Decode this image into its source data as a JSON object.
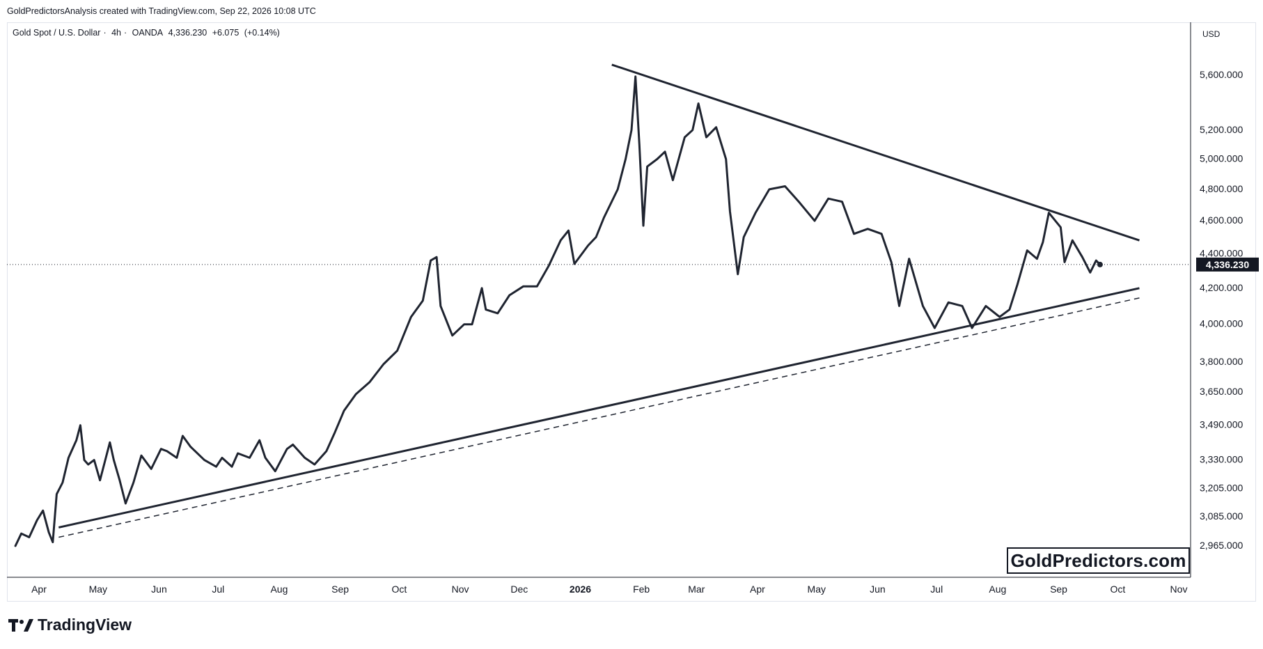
{
  "header": {
    "attribution": "GoldPredictorsAnalysis created with TradingView.com, Sep 22, 2026 10:08 UTC"
  },
  "legend": {
    "symbol": "Gold Spot / U.S. Dollar",
    "interval": "4h",
    "source": "OANDA",
    "last": "4,336.230",
    "change": "+6.075",
    "change_pct": "(+0.14%)"
  },
  "price_axis": {
    "currency": "USD",
    "current_price_label": "4,336.230"
  },
  "watermark": "GoldPredictors.com",
  "footer": {
    "brand": "TradingView"
  },
  "colors": {
    "line": "#1f2430",
    "trendline": "#1f2430",
    "grid": "#f0f3fa",
    "price_tag_bg": "#131722",
    "price_tag_text": "#ffffff"
  },
  "chart_data": {
    "type": "line",
    "title": "",
    "xlabel": "",
    "ylabel": "",
    "scale": "log",
    "ylim": [
      2860,
      5850
    ],
    "grid": false,
    "y_ticks": [
      "5,600.000",
      "5,200.000",
      "5,000.000",
      "4,800.000",
      "4,600.000",
      "4,400.000",
      "4,200.000",
      "4,000.000",
      "3,800.000",
      "3,650.000",
      "3,490.000",
      "3,330.000",
      "3,205.000",
      "3,085.000",
      "2,965.000"
    ],
    "x_ticks": [
      {
        "label": "Apr",
        "date": "2025-04-01",
        "bold": false
      },
      {
        "label": "May",
        "date": "2025-05-01",
        "bold": false
      },
      {
        "label": "Jun",
        "date": "2025-06-01",
        "bold": false
      },
      {
        "label": "Jul",
        "date": "2025-07-01",
        "bold": false
      },
      {
        "label": "Aug",
        "date": "2025-08-01",
        "bold": false
      },
      {
        "label": "Sep",
        "date": "2025-09-01",
        "bold": false
      },
      {
        "label": "Oct",
        "date": "2025-10-01",
        "bold": false
      },
      {
        "label": "Nov",
        "date": "2025-11-01",
        "bold": false
      },
      {
        "label": "Dec",
        "date": "2025-12-01",
        "bold": false
      },
      {
        "label": "2026",
        "date": "2026-01-01",
        "bold": true
      },
      {
        "label": "Feb",
        "date": "2026-02-01",
        "bold": false
      },
      {
        "label": "Mar",
        "date": "2026-03-01",
        "bold": false
      },
      {
        "label": "Apr",
        "date": "2026-04-01",
        "bold": false
      },
      {
        "label": "May",
        "date": "2026-05-01",
        "bold": false
      },
      {
        "label": "Jun",
        "date": "2026-06-01",
        "bold": false
      },
      {
        "label": "Jul",
        "date": "2026-07-01",
        "bold": false
      },
      {
        "label": "Aug",
        "date": "2026-08-01",
        "bold": false
      },
      {
        "label": "Sep",
        "date": "2026-09-01",
        "bold": false
      },
      {
        "label": "Oct",
        "date": "2026-10-01",
        "bold": false
      },
      {
        "label": "Nov",
        "date": "2026-11-01",
        "bold": false
      }
    ],
    "series": [
      {
        "values": [
          {
            "x": "2025-03-20",
            "y": 2965
          },
          {
            "x": "2025-03-23",
            "y": 3015
          },
          {
            "x": "2025-03-27",
            "y": 3000
          },
          {
            "x": "2025-03-31",
            "y": 3070
          },
          {
            "x": "2025-04-03",
            "y": 3110
          },
          {
            "x": "2025-04-06",
            "y": 3020
          },
          {
            "x": "2025-04-08",
            "y": 2980
          },
          {
            "x": "2025-04-10",
            "y": 3180
          },
          {
            "x": "2025-04-13",
            "y": 3230
          },
          {
            "x": "2025-04-16",
            "y": 3340
          },
          {
            "x": "2025-04-20",
            "y": 3420
          },
          {
            "x": "2025-04-22",
            "y": 3490
          },
          {
            "x": "2025-04-24",
            "y": 3330
          },
          {
            "x": "2025-04-26",
            "y": 3310
          },
          {
            "x": "2025-04-29",
            "y": 3330
          },
          {
            "x": "2025-05-02",
            "y": 3240
          },
          {
            "x": "2025-05-07",
            "y": 3410
          },
          {
            "x": "2025-05-09",
            "y": 3330
          },
          {
            "x": "2025-05-12",
            "y": 3240
          },
          {
            "x": "2025-05-15",
            "y": 3140
          },
          {
            "x": "2025-05-19",
            "y": 3230
          },
          {
            "x": "2025-05-23",
            "y": 3350
          },
          {
            "x": "2025-05-28",
            "y": 3290
          },
          {
            "x": "2025-06-02",
            "y": 3380
          },
          {
            "x": "2025-06-05",
            "y": 3370
          },
          {
            "x": "2025-06-10",
            "y": 3340
          },
          {
            "x": "2025-06-13",
            "y": 3440
          },
          {
            "x": "2025-06-17",
            "y": 3390
          },
          {
            "x": "2025-06-24",
            "y": 3330
          },
          {
            "x": "2025-06-30",
            "y": 3300
          },
          {
            "x": "2025-07-03",
            "y": 3340
          },
          {
            "x": "2025-07-08",
            "y": 3300
          },
          {
            "x": "2025-07-11",
            "y": 3360
          },
          {
            "x": "2025-07-17",
            "y": 3340
          },
          {
            "x": "2025-07-22",
            "y": 3420
          },
          {
            "x": "2025-07-25",
            "y": 3340
          },
          {
            "x": "2025-07-30",
            "y": 3280
          },
          {
            "x": "2025-08-05",
            "y": 3380
          },
          {
            "x": "2025-08-08",
            "y": 3400
          },
          {
            "x": "2025-08-14",
            "y": 3340
          },
          {
            "x": "2025-08-19",
            "y": 3310
          },
          {
            "x": "2025-08-25",
            "y": 3370
          },
          {
            "x": "2025-08-29",
            "y": 3450
          },
          {
            "x": "2025-09-03",
            "y": 3560
          },
          {
            "x": "2025-09-09",
            "y": 3640
          },
          {
            "x": "2025-09-16",
            "y": 3700
          },
          {
            "x": "2025-09-23",
            "y": 3790
          },
          {
            "x": "2025-09-30",
            "y": 3860
          },
          {
            "x": "2025-10-07",
            "y": 4040
          },
          {
            "x": "2025-10-13",
            "y": 4130
          },
          {
            "x": "2025-10-17",
            "y": 4360
          },
          {
            "x": "2025-10-20",
            "y": 4380
          },
          {
            "x": "2025-10-22",
            "y": 4100
          },
          {
            "x": "2025-10-28",
            "y": 3940
          },
          {
            "x": "2025-11-03",
            "y": 4000
          },
          {
            "x": "2025-11-07",
            "y": 4000
          },
          {
            "x": "2025-11-12",
            "y": 4200
          },
          {
            "x": "2025-11-14",
            "y": 4080
          },
          {
            "x": "2025-11-20",
            "y": 4060
          },
          {
            "x": "2025-11-26",
            "y": 4160
          },
          {
            "x": "2025-12-03",
            "y": 4210
          },
          {
            "x": "2025-12-10",
            "y": 4210
          },
          {
            "x": "2025-12-16",
            "y": 4330
          },
          {
            "x": "2025-12-22",
            "y": 4480
          },
          {
            "x": "2025-12-26",
            "y": 4540
          },
          {
            "x": "2025-12-29",
            "y": 4340
          },
          {
            "x": "2026-01-05",
            "y": 4450
          },
          {
            "x": "2026-01-09",
            "y": 4500
          },
          {
            "x": "2026-01-13",
            "y": 4620
          },
          {
            "x": "2026-01-20",
            "y": 4800
          },
          {
            "x": "2026-01-24",
            "y": 5000
          },
          {
            "x": "2026-01-27",
            "y": 5200
          },
          {
            "x": "2026-01-29",
            "y": 5590
          },
          {
            "x": "2026-01-31",
            "y": 5100
          },
          {
            "x": "2026-02-02",
            "y": 4570
          },
          {
            "x": "2026-02-04",
            "y": 4950
          },
          {
            "x": "2026-02-09",
            "y": 5000
          },
          {
            "x": "2026-02-13",
            "y": 5050
          },
          {
            "x": "2026-02-17",
            "y": 4860
          },
          {
            "x": "2026-02-23",
            "y": 5150
          },
          {
            "x": "2026-02-27",
            "y": 5200
          },
          {
            "x": "2026-03-02",
            "y": 5390
          },
          {
            "x": "2026-03-06",
            "y": 5150
          },
          {
            "x": "2026-03-11",
            "y": 5220
          },
          {
            "x": "2026-03-16",
            "y": 5000
          },
          {
            "x": "2026-03-18",
            "y": 4660
          },
          {
            "x": "2026-03-22",
            "y": 4280
          },
          {
            "x": "2026-03-25",
            "y": 4500
          },
          {
            "x": "2026-03-31",
            "y": 4650
          },
          {
            "x": "2026-04-07",
            "y": 4800
          },
          {
            "x": "2026-04-15",
            "y": 4820
          },
          {
            "x": "2026-04-22",
            "y": 4720
          },
          {
            "x": "2026-04-30",
            "y": 4600
          },
          {
            "x": "2026-05-07",
            "y": 4740
          },
          {
            "x": "2026-05-14",
            "y": 4720
          },
          {
            "x": "2026-05-20",
            "y": 4520
          },
          {
            "x": "2026-05-27",
            "y": 4550
          },
          {
            "x": "2026-06-03",
            "y": 4520
          },
          {
            "x": "2026-06-08",
            "y": 4350
          },
          {
            "x": "2026-06-12",
            "y": 4100
          },
          {
            "x": "2026-06-17",
            "y": 4370
          },
          {
            "x": "2026-06-24",
            "y": 4100
          },
          {
            "x": "2026-06-30",
            "y": 3980
          },
          {
            "x": "2026-07-07",
            "y": 4120
          },
          {
            "x": "2026-07-14",
            "y": 4100
          },
          {
            "x": "2026-07-19",
            "y": 3980
          },
          {
            "x": "2026-07-26",
            "y": 4100
          },
          {
            "x": "2026-08-02",
            "y": 4040
          },
          {
            "x": "2026-08-07",
            "y": 4080
          },
          {
            "x": "2026-08-11",
            "y": 4220
          },
          {
            "x": "2026-08-16",
            "y": 4420
          },
          {
            "x": "2026-08-21",
            "y": 4370
          },
          {
            "x": "2026-08-24",
            "y": 4470
          },
          {
            "x": "2026-08-27",
            "y": 4650
          },
          {
            "x": "2026-09-02",
            "y": 4560
          },
          {
            "x": "2026-09-04",
            "y": 4350
          },
          {
            "x": "2026-09-08",
            "y": 4480
          },
          {
            "x": "2026-09-13",
            "y": 4380
          },
          {
            "x": "2026-09-17",
            "y": 4290
          },
          {
            "x": "2026-09-20",
            "y": 4360
          },
          {
            "x": "2026-09-22",
            "y": 4336.23
          }
        ]
      }
    ],
    "trendlines": [
      {
        "style": "solid",
        "from": {
          "x": "2026-01-17",
          "y": 5680
        },
        "to": {
          "x": "2026-10-12",
          "y": 4480
        }
      },
      {
        "style": "solid",
        "from": {
          "x": "2025-04-11",
          "y": 3040
        },
        "to": {
          "x": "2026-10-12",
          "y": 4200
        }
      },
      {
        "style": "dashed",
        "from": {
          "x": "2025-04-11",
          "y": 3000
        },
        "to": {
          "x": "2026-10-12",
          "y": 4145
        }
      }
    ]
  }
}
